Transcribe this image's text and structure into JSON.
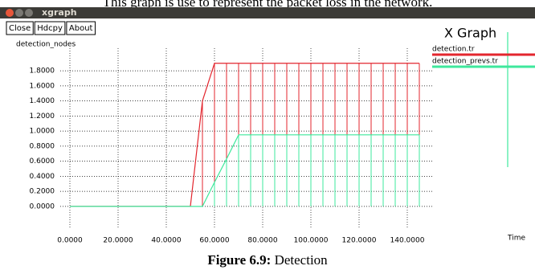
{
  "top_text": "This graph is use to represent the packet loss in the network.",
  "window_title": "xgraph",
  "buttons": [
    "Close",
    "Hdcpy",
    "About"
  ],
  "caption": {
    "label": "Figure 6.9:",
    "text": "Detection"
  },
  "chart_data": {
    "type": "line",
    "title": "X Graph",
    "ylabel": "detection_nodes",
    "xlabel": "Time",
    "x": [
      0,
      50,
      55,
      60,
      65,
      70,
      75,
      80,
      85,
      90,
      95,
      100,
      105,
      110,
      115,
      120,
      125,
      130,
      135,
      140,
      145
    ],
    "series": [
      {
        "name": "detection.tr",
        "color": "#e3262e",
        "values": [
          0,
          0,
          1.4,
          1.9,
          1.9,
          1.9,
          1.9,
          1.9,
          1.9,
          1.9,
          1.9,
          1.9,
          1.9,
          1.9,
          1.9,
          1.9,
          1.9,
          1.9,
          1.9,
          1.9,
          1.9
        ]
      },
      {
        "name": "detection_prevs.tr",
        "color": "#3ee89c",
        "values": [
          0,
          0,
          0,
          0.32,
          0.63,
          0.95,
          0.95,
          0.95,
          0.95,
          0.95,
          0.95,
          0.95,
          0.95,
          0.95,
          0.95,
          0.95,
          0.95,
          0.95,
          0.95,
          0.95,
          0.95
        ]
      }
    ],
    "bar_lines": true,
    "xlim": [
      -4,
      151
    ],
    "ylim": [
      -0.3,
      2.1
    ],
    "xticks": [
      {
        "value": 0,
        "label": "0.0000"
      },
      {
        "value": 20,
        "label": "20.0000"
      },
      {
        "value": 40,
        "label": "40.0000"
      },
      {
        "value": 60,
        "label": "60.0000"
      },
      {
        "value": 80,
        "label": "80.0000"
      },
      {
        "value": 100,
        "label": "100.0000"
      },
      {
        "value": 120,
        "label": "120.0000"
      },
      {
        "value": 140,
        "label": "140.0000"
      }
    ],
    "yticks": [
      {
        "value": 0,
        "label": "0.0000"
      },
      {
        "value": 0.2,
        "label": "0.2000"
      },
      {
        "value": 0.4,
        "label": "0.4000"
      },
      {
        "value": 0.6,
        "label": "0.6000"
      },
      {
        "value": 0.8,
        "label": "0.8000"
      },
      {
        "value": 1,
        "label": "1.0000"
      },
      {
        "value": 1.2,
        "label": "1.2000"
      },
      {
        "value": 1.4,
        "label": "1.4000"
      },
      {
        "value": 1.6,
        "label": "1.6000"
      },
      {
        "value": 1.8,
        "label": "1.8000"
      }
    ],
    "grid": true
  }
}
